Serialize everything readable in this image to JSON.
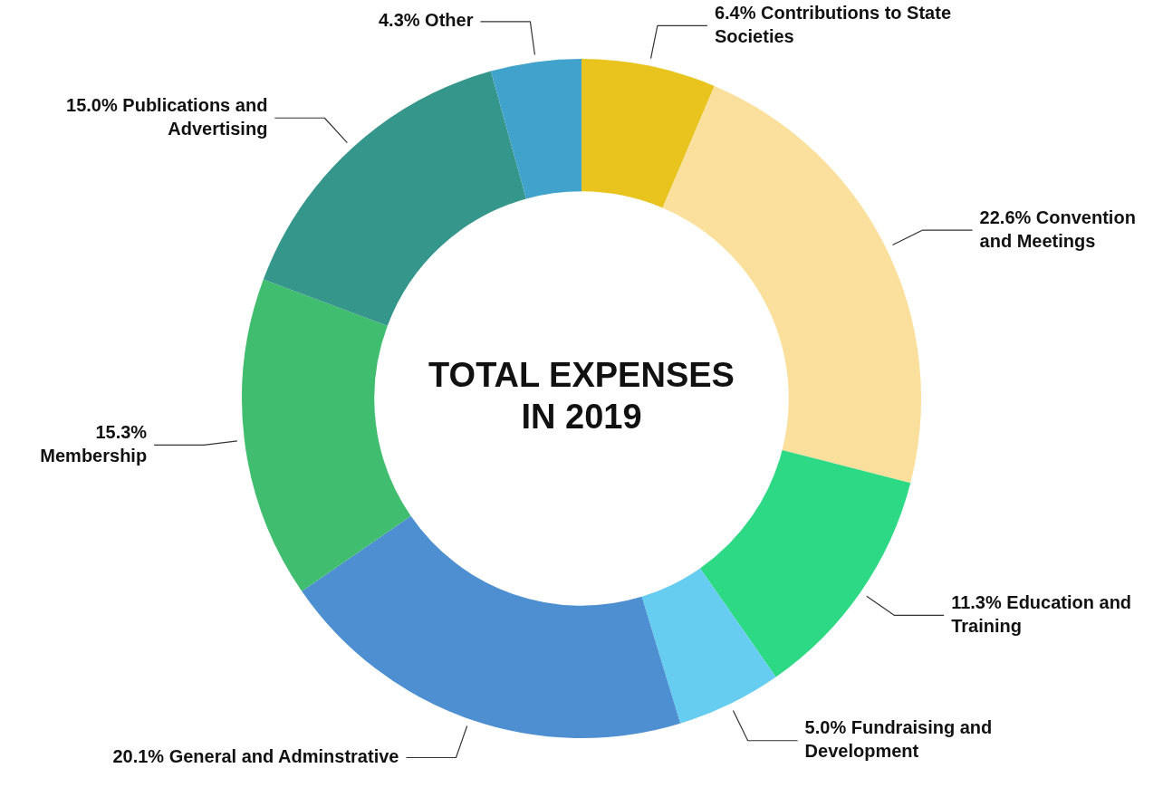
{
  "chart_data": {
    "type": "donut",
    "title": "TOTAL EXPENSES IN 2019",
    "categories": [
      "Contributions to State Societies",
      "Convention and Meetings",
      "Education and Training",
      "Fundraising and Development",
      "General and Adminstrative",
      "Membership",
      "Publications and Advertising",
      "Other"
    ],
    "values": [
      6.4,
      22.6,
      11.3,
      5.0,
      20.1,
      15.3,
      15.0,
      4.3
    ],
    "value_labels": [
      "6.4%",
      "22.6%",
      "11.3%",
      "5.0%",
      "20.1%",
      "15.3%",
      "15.0%",
      "4.3%"
    ],
    "colors": [
      "#e9c41f",
      "#fae09c",
      "#2ed985",
      "#66ccf0",
      "#4d8fd1",
      "#40bd6e",
      "#35968c",
      "#41a3cc"
    ],
    "legend": false
  }
}
